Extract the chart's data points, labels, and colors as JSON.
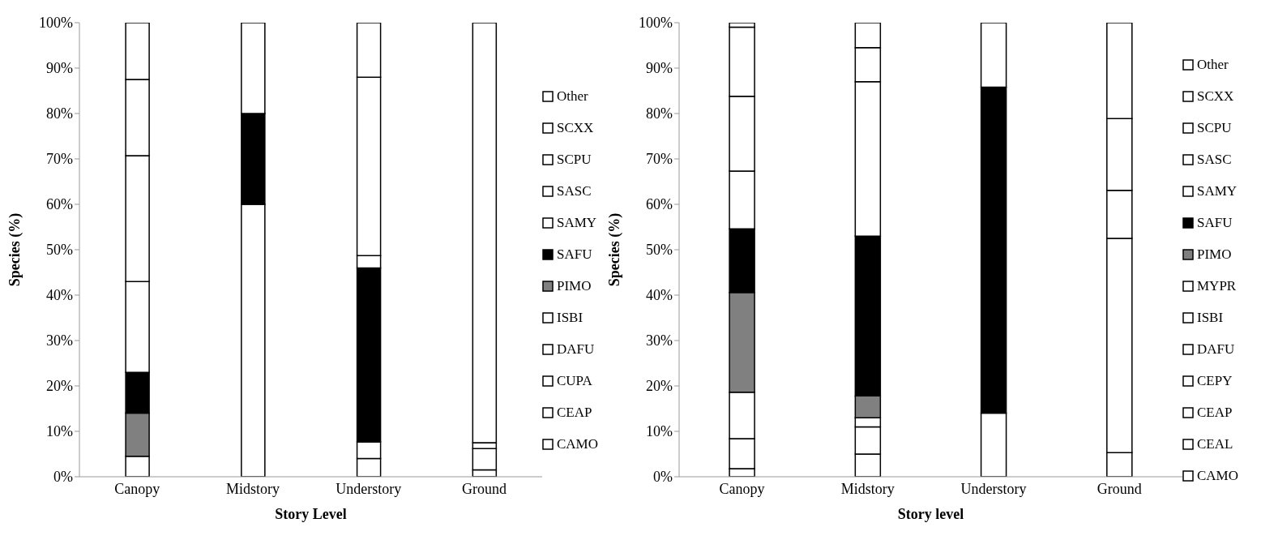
{
  "chart_data": [
    {
      "type": "bar",
      "stacked": true,
      "xlabel": "Story Level",
      "ylabel": "Species (%)",
      "categories": [
        "Canopy",
        "Midstory",
        "Understory",
        "Ground"
      ],
      "legend": "right",
      "grid": false,
      "ylim": [
        0,
        100
      ],
      "yticks": [
        {
          "value": 0,
          "label": "0%"
        },
        {
          "value": 10,
          "label": "10%"
        },
        {
          "value": 20,
          "label": "20%"
        },
        {
          "value": 30,
          "label": "30%"
        },
        {
          "value": 40,
          "label": "40%"
        },
        {
          "value": 50,
          "label": "50%"
        },
        {
          "value": 60,
          "label": "60%"
        },
        {
          "value": 70,
          "label": "70%"
        },
        {
          "value": 80,
          "label": "80%"
        },
        {
          "value": 90,
          "label": "90%"
        },
        {
          "value": 100,
          "label": "100%"
        }
      ],
      "series": [
        {
          "name": "CAMO",
          "color": "#ffffff",
          "values": [
            4.5,
            60,
            4,
            null
          ]
        },
        {
          "name": "CEAP",
          "color": "#ffffff",
          "values": [
            null,
            null,
            null,
            1.5
          ]
        },
        {
          "name": "CUPA",
          "color": "#ffffff",
          "values": [
            null,
            null,
            null,
            4.7
          ]
        },
        {
          "name": "DAFU",
          "color": "#ffffff",
          "values": [
            null,
            null,
            null,
            1.3
          ]
        },
        {
          "name": "ISBI",
          "color": "#ffffff",
          "values": [
            null,
            null,
            3.7,
            null
          ]
        },
        {
          "name": "PIMO",
          "color": "#808080",
          "values": [
            9.5,
            null,
            null,
            null
          ]
        },
        {
          "name": "SAFU",
          "color": "#000000",
          "values": [
            9,
            20,
            38.3,
            null
          ]
        },
        {
          "name": "SAMY",
          "color": "#ffffff",
          "values": [
            20,
            null,
            2.7,
            null
          ]
        },
        {
          "name": "SASC",
          "color": "#ffffff",
          "values": [
            27.7,
            null,
            39.3,
            null
          ]
        },
        {
          "name": "SCPU",
          "color": "#ffffff",
          "values": [
            16.8,
            20,
            12,
            null
          ]
        },
        {
          "name": "SCXX",
          "color": "#ffffff",
          "values": [
            null,
            null,
            null,
            null
          ]
        },
        {
          "name": "Other",
          "color": "#ffffff",
          "values": [
            12.5,
            null,
            null,
            92.5
          ]
        }
      ]
    },
    {
      "type": "bar",
      "stacked": true,
      "xlabel": "Story level",
      "ylabel": "Species (%)",
      "categories": [
        "Canopy",
        "Midstory",
        "Understory",
        "Ground"
      ],
      "legend": "right",
      "grid": false,
      "ylim": [
        0,
        100
      ],
      "yticks": [
        {
          "value": 0,
          "label": "0%"
        },
        {
          "value": 10,
          "label": "10%"
        },
        {
          "value": 20,
          "label": "20%"
        },
        {
          "value": 30,
          "label": "30%"
        },
        {
          "value": 40,
          "label": "40%"
        },
        {
          "value": 50,
          "label": "50%"
        },
        {
          "value": 60,
          "label": "60%"
        },
        {
          "value": 70,
          "label": "70%"
        },
        {
          "value": 80,
          "label": "80%"
        },
        {
          "value": 90,
          "label": "90%"
        },
        {
          "value": 100,
          "label": "100%"
        }
      ],
      "series": [
        {
          "name": "CAMO",
          "color": "#ffffff",
          "values": [
            1.8,
            5,
            null,
            5.3
          ]
        },
        {
          "name": "CEAL",
          "color": "#ffffff",
          "values": [
            6.6,
            null,
            null,
            null
          ]
        },
        {
          "name": "CEAP",
          "color": "#ffffff",
          "values": [
            10.2,
            6,
            null,
            null
          ]
        },
        {
          "name": "CEPY",
          "color": "#ffffff",
          "values": [
            null,
            2,
            null,
            null
          ]
        },
        {
          "name": "DAFU",
          "color": "#ffffff",
          "values": [
            null,
            null,
            null,
            47.2
          ]
        },
        {
          "name": "ISBI",
          "color": "#ffffff",
          "values": [
            null,
            null,
            14,
            null
          ]
        },
        {
          "name": "MYPR",
          "color": "#ffffff",
          "values": [
            null,
            null,
            null,
            10.6
          ]
        },
        {
          "name": "PIMO",
          "color": "#808080",
          "values": [
            22,
            4.8,
            null,
            null
          ]
        },
        {
          "name": "SAFU",
          "color": "#000000",
          "values": [
            14,
            35.2,
            71.8,
            null
          ]
        },
        {
          "name": "SAMY",
          "color": "#ffffff",
          "values": [
            12.7,
            34,
            null,
            null
          ]
        },
        {
          "name": "SASC",
          "color": "#ffffff",
          "values": [
            16.5,
            7.5,
            null,
            null
          ]
        },
        {
          "name": "SCPU",
          "color": "#ffffff",
          "values": [
            15.2,
            5.5,
            null,
            null
          ]
        },
        {
          "name": "SCXX",
          "color": "#ffffff",
          "values": [
            null,
            null,
            14.2,
            15.8
          ]
        },
        {
          "name": "Other",
          "color": "#ffffff",
          "values": [
            1,
            null,
            null,
            21.1
          ]
        }
      ]
    }
  ]
}
